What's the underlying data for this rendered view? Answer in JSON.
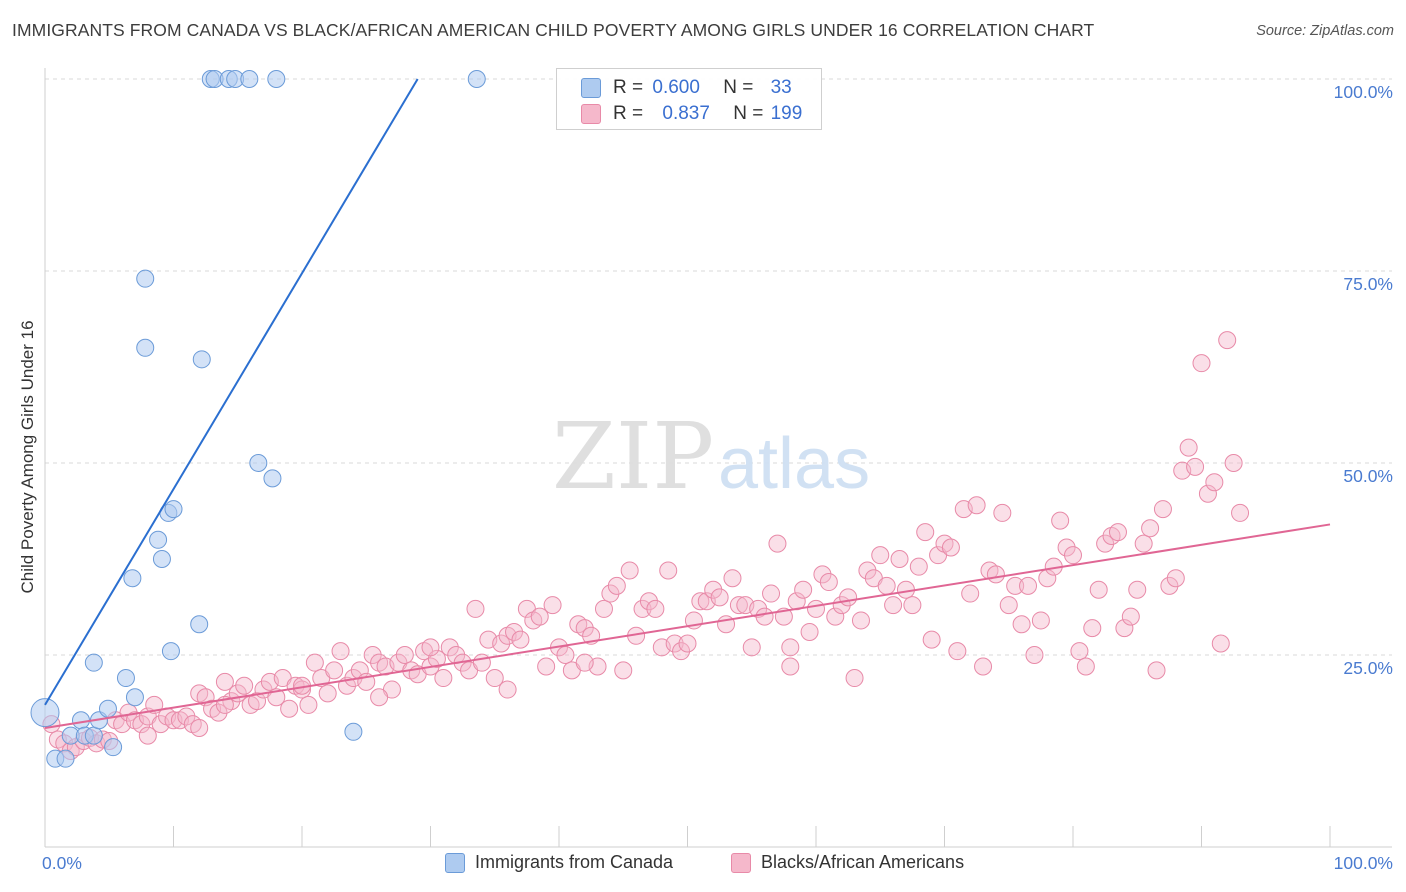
{
  "title": "IMMIGRANTS FROM CANADA VS BLACK/AFRICAN AMERICAN CHILD POVERTY AMONG GIRLS UNDER 16 CORRELATION CHART",
  "source": "Source: ZipAtlas.com",
  "watermark": {
    "zip": "ZIP",
    "atlas": "atlas"
  },
  "colors": {
    "blue_fill": "#aecbf0",
    "blue_stroke": "#6b9bd8",
    "blue_line": "#2b6fd0",
    "pink_fill": "#f5b8cb",
    "pink_stroke": "#e88aa8",
    "pink_line": "#e06694",
    "tick_label": "#4a7bd0",
    "grid": "#d8d8d8"
  },
  "stats": [
    {
      "r_label": "R =",
      "r": "0.600",
      "n_label": "N =",
      "n": "33",
      "series": "blue"
    },
    {
      "r_label": "R =",
      "r": "0.837",
      "n_label": "N =",
      "n": "199",
      "series": "pink"
    }
  ],
  "legend": [
    "Immigrants from Canada",
    "Blacks/African Americans"
  ],
  "chart_data": {
    "type": "scatter",
    "title": "IMMIGRANTS FROM CANADA VS BLACK/AFRICAN AMERICAN CHILD POVERTY AMONG GIRLS UNDER 16 CORRELATION CHART",
    "xlabel": "",
    "ylabel": "Child Poverty Among Girls Under 16",
    "xlim": [
      0,
      100
    ],
    "ylim": [
      0,
      100
    ],
    "x_tick_labels": [
      "0.0%",
      "100.0%"
    ],
    "y_tick_labels": [
      "25.0%",
      "50.0%",
      "75.0%",
      "100.0%"
    ],
    "y_ticks": [
      25,
      50,
      75,
      100
    ],
    "grid": true,
    "legend_position": "bottom",
    "series": [
      {
        "name": "Immigrants from Canada",
        "color": "#aecbf0",
        "trend": {
          "x": [
            0.0,
            29.0
          ],
          "y": [
            18.5,
            100.0
          ]
        },
        "points": [
          [
            0.0,
            17.5
          ],
          [
            0.8,
            11.5
          ],
          [
            1.6,
            11.5
          ],
          [
            2.0,
            14.5
          ],
          [
            2.8,
            16.5
          ],
          [
            3.1,
            14.5
          ],
          [
            3.8,
            14.5
          ],
          [
            4.2,
            16.5
          ],
          [
            3.8,
            24.0
          ],
          [
            4.9,
            18.0
          ],
          [
            5.3,
            13.0
          ],
          [
            6.3,
            22.0
          ],
          [
            7.0,
            19.5
          ],
          [
            6.8,
            35.0
          ],
          [
            7.8,
            74.0
          ],
          [
            7.8,
            65.0
          ],
          [
            8.8,
            40.0
          ],
          [
            9.1,
            37.5
          ],
          [
            9.6,
            43.5
          ],
          [
            10.0,
            44.0
          ],
          [
            9.8,
            25.5
          ],
          [
            12.0,
            29.0
          ],
          [
            12.2,
            63.5
          ],
          [
            16.6,
            50.0
          ],
          [
            17.7,
            48.0
          ],
          [
            12.9,
            100.0
          ],
          [
            13.2,
            100.0
          ],
          [
            14.3,
            100.0
          ],
          [
            14.8,
            100.0
          ],
          [
            15.9,
            100.0
          ],
          [
            18.0,
            100.0
          ],
          [
            33.6,
            100.0
          ],
          [
            24.0,
            15.0
          ]
        ]
      },
      {
        "name": "Blacks/African Americans",
        "color": "#f5b8cb",
        "trend": {
          "x": [
            0.0,
            100.0
          ],
          "y": [
            15.5,
            42.0
          ]
        },
        "points": [
          [
            0.5,
            16
          ],
          [
            1.0,
            14
          ],
          [
            1.5,
            13.5
          ],
          [
            2.0,
            12.5
          ],
          [
            2.4,
            13
          ],
          [
            3.0,
            13.8
          ],
          [
            3.5,
            14.2
          ],
          [
            4.0,
            13.5
          ],
          [
            4.5,
            14
          ],
          [
            5.0,
            13.8
          ],
          [
            5.5,
            16.5
          ],
          [
            6.0,
            16
          ],
          [
            6.5,
            17.5
          ],
          [
            7.0,
            16.5
          ],
          [
            7.5,
            16
          ],
          [
            8.0,
            17
          ],
          [
            8.5,
            18.5
          ],
          [
            9.0,
            16
          ],
          [
            9.5,
            17
          ],
          [
            10.0,
            16.5
          ],
          [
            10.5,
            16.5
          ],
          [
            11.0,
            17
          ],
          [
            11.5,
            16
          ],
          [
            12.0,
            20
          ],
          [
            12.5,
            19.5
          ],
          [
            13.0,
            18
          ],
          [
            13.5,
            17.5
          ],
          [
            14.0,
            21.5
          ],
          [
            14.5,
            19
          ],
          [
            15.0,
            20
          ],
          [
            15.5,
            21
          ],
          [
            16.0,
            18.5
          ],
          [
            16.5,
            19
          ],
          [
            17.0,
            20.5
          ],
          [
            17.5,
            21.5
          ],
          [
            18.0,
            19.5
          ],
          [
            18.5,
            22
          ],
          [
            19.0,
            18
          ],
          [
            19.5,
            21
          ],
          [
            20.0,
            20.5
          ],
          [
            20.5,
            18.5
          ],
          [
            21.0,
            24
          ],
          [
            21.5,
            22
          ],
          [
            22.0,
            20
          ],
          [
            22.5,
            23
          ],
          [
            23.0,
            25.5
          ],
          [
            23.5,
            21
          ],
          [
            24.0,
            22
          ],
          [
            24.5,
            23
          ],
          [
            25.0,
            21.5
          ],
          [
            25.5,
            25
          ],
          [
            26.0,
            24
          ],
          [
            26.5,
            23.5
          ],
          [
            27.0,
            20.5
          ],
          [
            27.5,
            24
          ],
          [
            28.0,
            25
          ],
          [
            28.5,
            23
          ],
          [
            29.0,
            22.5
          ],
          [
            29.5,
            25.5
          ],
          [
            30.0,
            23.5
          ],
          [
            30.5,
            24.5
          ],
          [
            31.0,
            22
          ],
          [
            31.5,
            26
          ],
          [
            32.0,
            25
          ],
          [
            32.5,
            24
          ],
          [
            33.0,
            23
          ],
          [
            33.5,
            31
          ],
          [
            34.0,
            24
          ],
          [
            34.5,
            27
          ],
          [
            35.0,
            22
          ],
          [
            35.5,
            26.5
          ],
          [
            36.0,
            27.5
          ],
          [
            36.5,
            28
          ],
          [
            37.0,
            27
          ],
          [
            37.5,
            31
          ],
          [
            38.0,
            29.5
          ],
          [
            38.5,
            30
          ],
          [
            39.0,
            23.5
          ],
          [
            39.5,
            31.5
          ],
          [
            40.0,
            26
          ],
          [
            40.5,
            25
          ],
          [
            41.0,
            23
          ],
          [
            41.5,
            29
          ],
          [
            42.0,
            28.5
          ],
          [
            42.5,
            27.5
          ],
          [
            43.0,
            23.5
          ],
          [
            43.5,
            31
          ],
          [
            44.0,
            33
          ],
          [
            44.5,
            34
          ],
          [
            45.0,
            23
          ],
          [
            45.5,
            36
          ],
          [
            46.0,
            27.5
          ],
          [
            46.5,
            31
          ],
          [
            47.0,
            32
          ],
          [
            47.5,
            31
          ],
          [
            48.0,
            26
          ],
          [
            48.5,
            36
          ],
          [
            49.0,
            26.5
          ],
          [
            49.5,
            25.5
          ],
          [
            50.0,
            26.5
          ],
          [
            50.5,
            29.5
          ],
          [
            51.0,
            32
          ],
          [
            51.5,
            32
          ],
          [
            52.0,
            33.5
          ],
          [
            52.5,
            32.5
          ],
          [
            53.0,
            29
          ],
          [
            53.5,
            35
          ],
          [
            54.0,
            31.5
          ],
          [
            54.5,
            31.5
          ],
          [
            55.0,
            26
          ],
          [
            55.5,
            31
          ],
          [
            56.0,
            30
          ],
          [
            56.5,
            33
          ],
          [
            57.0,
            39.5
          ],
          [
            57.5,
            30
          ],
          [
            58.0,
            26
          ],
          [
            58.5,
            32
          ],
          [
            59.0,
            33.5
          ],
          [
            59.5,
            28
          ],
          [
            60.0,
            31
          ],
          [
            60.5,
            35.5
          ],
          [
            61.0,
            34.5
          ],
          [
            61.5,
            30
          ],
          [
            62.0,
            31.5
          ],
          [
            62.5,
            32.5
          ],
          [
            63.0,
            22
          ],
          [
            63.5,
            29.5
          ],
          [
            64.0,
            36
          ],
          [
            64.5,
            35
          ],
          [
            65.0,
            38
          ],
          [
            65.5,
            34
          ],
          [
            66.0,
            31.5
          ],
          [
            66.5,
            37.5
          ],
          [
            67.0,
            33.5
          ],
          [
            67.5,
            31.5
          ],
          [
            68.0,
            36.5
          ],
          [
            68.5,
            41
          ],
          [
            69.0,
            27
          ],
          [
            69.5,
            38
          ],
          [
            70.0,
            39.5
          ],
          [
            70.5,
            39
          ],
          [
            71.0,
            25.5
          ],
          [
            71.5,
            44
          ],
          [
            72.0,
            33
          ],
          [
            72.5,
            44.5
          ],
          [
            73.0,
            23.5
          ],
          [
            73.5,
            36
          ],
          [
            74.0,
            35.5
          ],
          [
            74.5,
            43.5
          ],
          [
            75.0,
            31.5
          ],
          [
            75.5,
            34
          ],
          [
            76.0,
            29
          ],
          [
            76.5,
            34
          ],
          [
            77.0,
            25
          ],
          [
            77.5,
            29.5
          ],
          [
            78.0,
            35
          ],
          [
            78.5,
            36.5
          ],
          [
            79.0,
            42.5
          ],
          [
            79.5,
            39
          ],
          [
            80.0,
            38
          ],
          [
            80.5,
            25.5
          ],
          [
            81.0,
            23.5
          ],
          [
            81.5,
            28.5
          ],
          [
            82.0,
            33.5
          ],
          [
            82.5,
            39.5
          ],
          [
            83.0,
            40.5
          ],
          [
            83.5,
            41
          ],
          [
            84.0,
            28.5
          ],
          [
            84.5,
            30
          ],
          [
            85.0,
            33.5
          ],
          [
            85.5,
            39.5
          ],
          [
            86.0,
            41.5
          ],
          [
            86.5,
            23
          ],
          [
            87.0,
            44
          ],
          [
            87.5,
            34
          ],
          [
            88.0,
            35
          ],
          [
            88.5,
            49
          ],
          [
            89.0,
            52
          ],
          [
            89.5,
            49.5
          ],
          [
            90.0,
            63
          ],
          [
            90.5,
            46
          ],
          [
            91.0,
            47.5
          ],
          [
            91.5,
            26.5
          ],
          [
            92.0,
            66
          ],
          [
            92.5,
            50
          ],
          [
            93.0,
            43.5
          ],
          [
            8.0,
            14.5
          ],
          [
            12.0,
            15.5
          ],
          [
            14.0,
            18.5
          ],
          [
            20.0,
            21
          ],
          [
            26.0,
            19.5
          ],
          [
            30.0,
            26
          ],
          [
            36.0,
            20.5
          ],
          [
            42.0,
            24
          ],
          [
            58.0,
            23.5
          ]
        ]
      }
    ]
  }
}
